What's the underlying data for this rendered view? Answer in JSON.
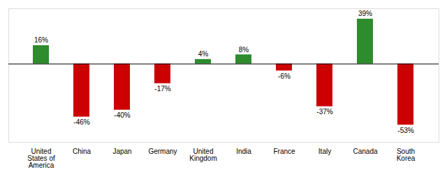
{
  "chart_data": {
    "type": "bar",
    "categories": [
      "United\nStates of\nAmerica",
      "China",
      "Japan",
      "Germany",
      "United\nKingdom",
      "India",
      "France",
      "Italy",
      "Canada",
      "South\nKorea"
    ],
    "values": [
      16,
      -46,
      -40,
      -17,
      4,
      8,
      -6,
      -37,
      39,
      -53
    ],
    "value_labels": [
      "16%",
      "-46%",
      "-40%",
      "-17%",
      "4%",
      "8%",
      "-6%",
      "-37%",
      "39%",
      "-53%"
    ],
    "colors": [
      "#2e8b2e",
      "#cc0000",
      "#cc0000",
      "#cc0000",
      "#2e8b2e",
      "#2e8b2e",
      "#cc0000",
      "#cc0000",
      "#2e8b2e",
      "#cc0000"
    ],
    "ylim": [
      -68,
      48
    ],
    "data_labels": true,
    "tick_labels": "x",
    "grid": false
  }
}
